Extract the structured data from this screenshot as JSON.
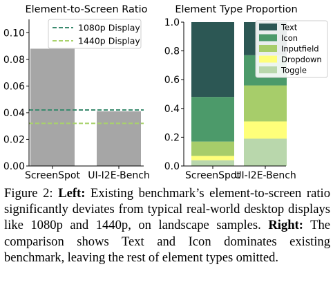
{
  "chart_data": [
    {
      "type": "bar",
      "title": "Element-to-Screen Ratio",
      "categories": [
        "ScreenSpot",
        "UI-I2E-Bench"
      ],
      "values": [
        0.088,
        0.041
      ],
      "ylim": [
        0,
        0.11
      ],
      "yticks": [
        "0.00",
        "0.02",
        "0.04",
        "0.06",
        "0.08",
        "0.10"
      ],
      "ytick_values": [
        0,
        0.02,
        0.04,
        0.06,
        0.08,
        0.1
      ],
      "bar_color": "#a6a6a6",
      "reference_lines": [
        {
          "name": "1080p Display",
          "value": 0.042,
          "color": "#3a8a6e"
        },
        {
          "name": "1440p Display",
          "value": 0.032,
          "color": "#a8d26a"
        }
      ],
      "legend_position": "top-right",
      "grid": false
    },
    {
      "type": "stacked-bar",
      "title": "Element Type Proportion",
      "categories": [
        "ScreenSpot",
        "UI-I2E-Bench"
      ],
      "ylim": [
        0,
        1.0
      ],
      "yticks": [
        "0.0",
        "0.2",
        "0.4",
        "0.6",
        "0.8",
        "1.0"
      ],
      "ytick_values": [
        0,
        0.2,
        0.4,
        0.6,
        0.8,
        1.0
      ],
      "series": [
        {
          "name": "Toggle",
          "color": "#b9d7ac",
          "values": [
            0.04,
            0.19
          ]
        },
        {
          "name": "Dropdown",
          "color": "#ffff7a",
          "values": [
            0.03,
            0.12
          ]
        },
        {
          "name": "Inputfield",
          "color": "#a7cd6a",
          "values": [
            0.1,
            0.25
          ]
        },
        {
          "name": "Icon",
          "color": "#4c9a6a",
          "values": [
            0.31,
            0.21
          ]
        },
        {
          "name": "Text",
          "color": "#2c5754",
          "values": [
            0.52,
            0.23
          ]
        }
      ],
      "legend_order": [
        "Text",
        "Icon",
        "Inputfield",
        "Dropdown",
        "Toggle"
      ],
      "legend_position": "top-right",
      "grid": false
    }
  ],
  "caption": {
    "prefix": "Figure 2: ",
    "left_label": "Left:",
    "left_text": " Existing benchmark’s element-to-screen ratio significantly deviates from typical real-world desktop displays like 1080p and 1440p, on landscape samples. ",
    "right_label": "Right:",
    "right_text": " The comparison shows Text and Icon dominates existing benchmark, leaving the rest of element types omitted."
  }
}
